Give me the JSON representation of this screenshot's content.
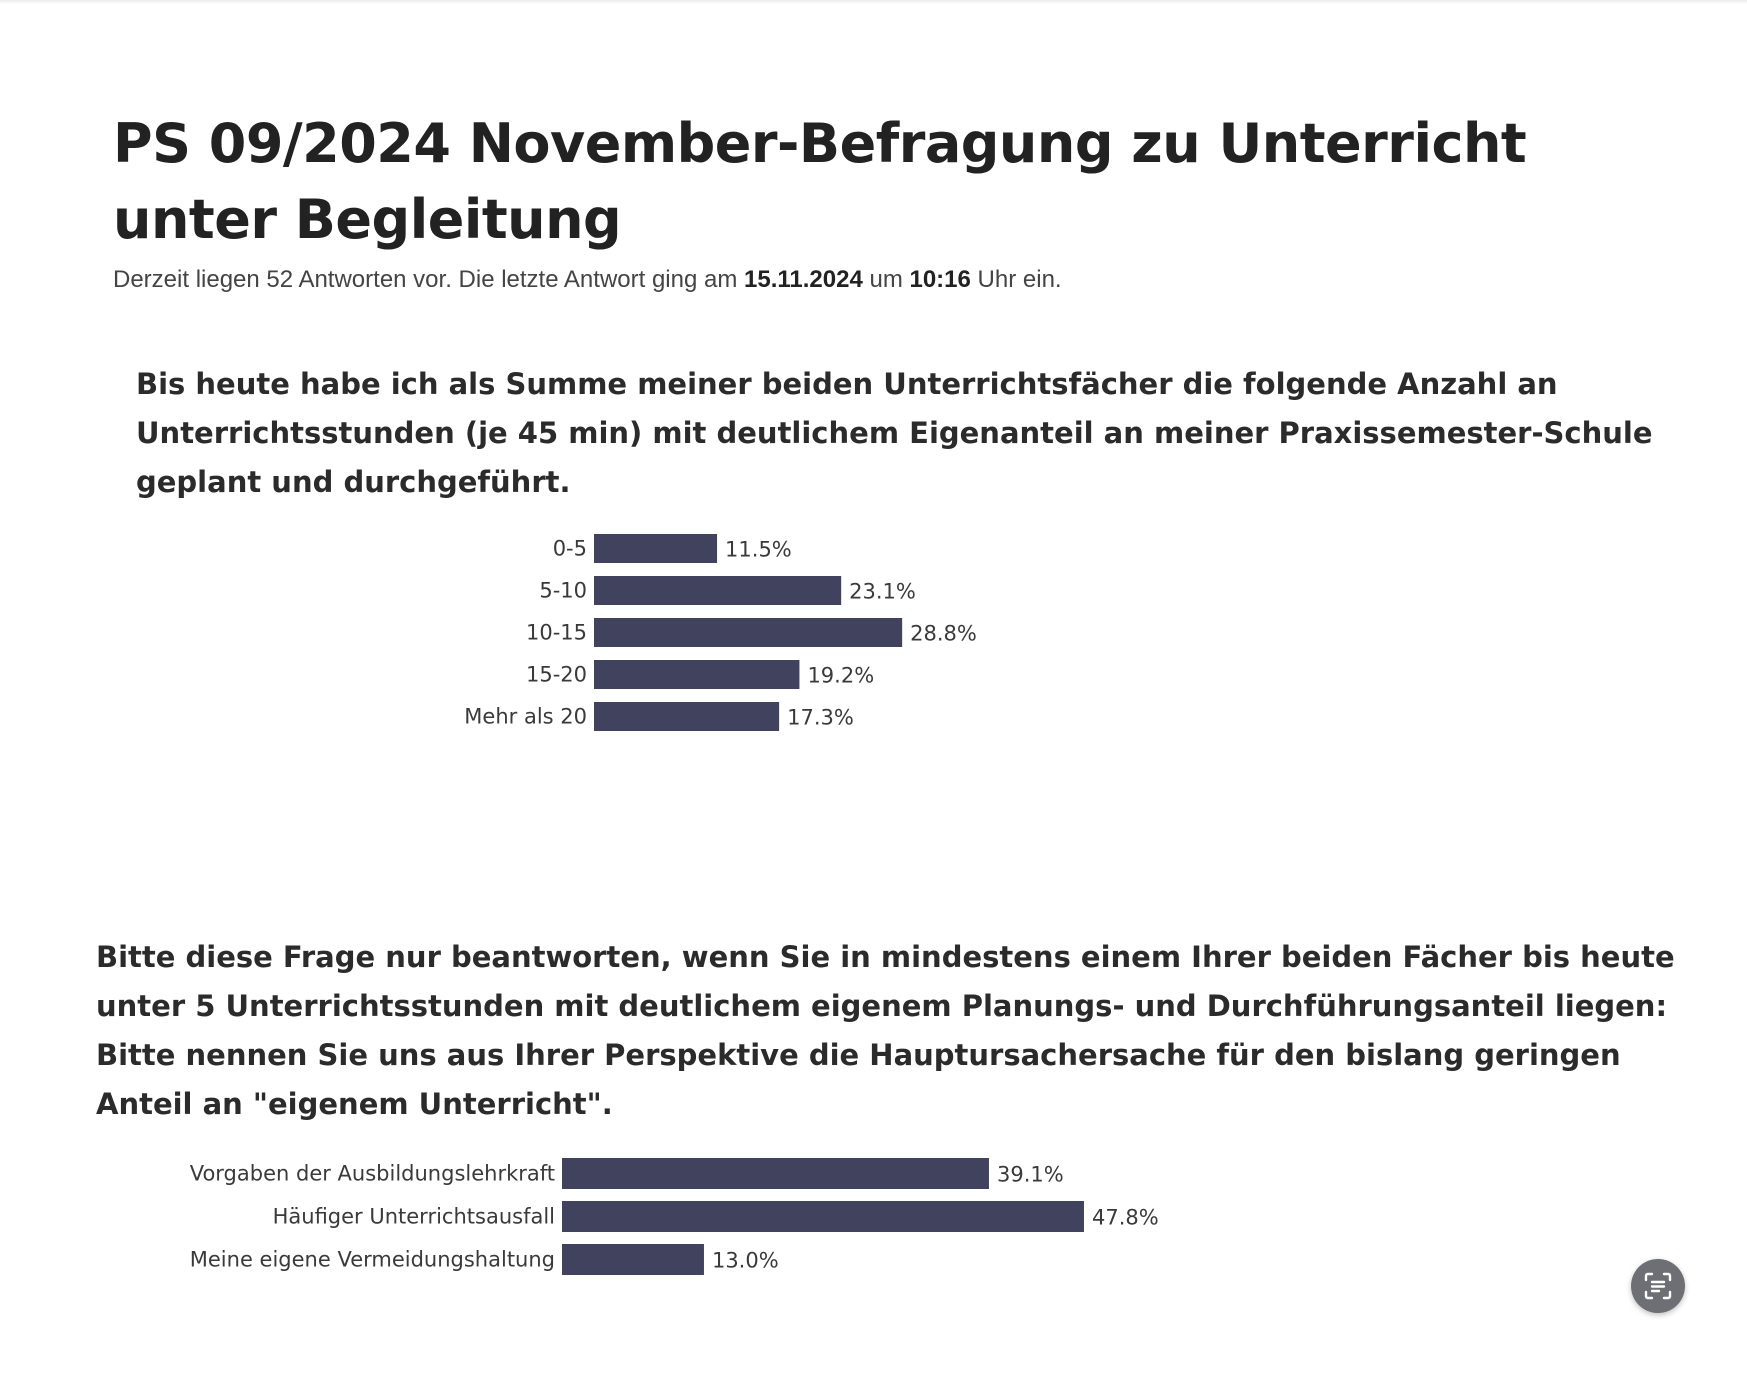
{
  "page": {
    "title": "PS 09/2024 November-Befragung zu Unterricht unter Begleitung",
    "subtitle": {
      "prefix": "Derzeit liegen 52 Antworten vor. Die letzte Antwort ging am ",
      "date": "15.11.2024",
      "middle": " um ",
      "time": "10:16",
      "suffix": " Uhr ein."
    }
  },
  "questions": [
    {
      "text": "Bis heute habe ich als Summe meiner beiden Unterrichtsfächer die folgende Anzahl an Unterrichtsstunden (je 45 min) mit deutlichem Eigenanteil an meiner Praxissemester-Schule geplant und durchgeführt."
    },
    {
      "text": "Bitte diese Frage nur beantworten, wenn Sie in mindestens einem Ihrer beiden Fächer bis heute unter 5 Unterrichtsstunden mit deutlichem eigenem Planungs- und Durchführungsanteil liegen: Bitte nennen Sie uns aus Ihrer Perspektive die Hauptursachersache für den bislang geringen Anteil an \"eigenem Unterricht\"."
    }
  ],
  "chart_data": [
    {
      "type": "bar",
      "orientation": "horizontal",
      "categories": [
        "0-5",
        "5-10",
        "10-15",
        "15-20",
        "Mehr als 20"
      ],
      "values": [
        11.5,
        23.1,
        28.8,
        19.2,
        17.3
      ],
      "value_labels": [
        "11.5%",
        "23.1%",
        "28.8%",
        "19.2%",
        "17.3%"
      ],
      "unit": "%",
      "bar_color": "#40425e",
      "title": "",
      "xlabel": "",
      "ylabel": ""
    },
    {
      "type": "bar",
      "orientation": "horizontal",
      "categories": [
        "Vorgaben der Ausbildungslehrkraft",
        "Häufiger Unterrichtsausfall",
        "Meine eigene Vermeidungshaltung"
      ],
      "values": [
        39.1,
        47.8,
        13.0
      ],
      "value_labels": [
        "39.1%",
        "47.8%",
        "13.0%"
      ],
      "unit": "%",
      "bar_color": "#40425e",
      "title": "",
      "xlabel": "",
      "ylabel": ""
    }
  ],
  "fab": {
    "icon": "scan-text-icon"
  }
}
